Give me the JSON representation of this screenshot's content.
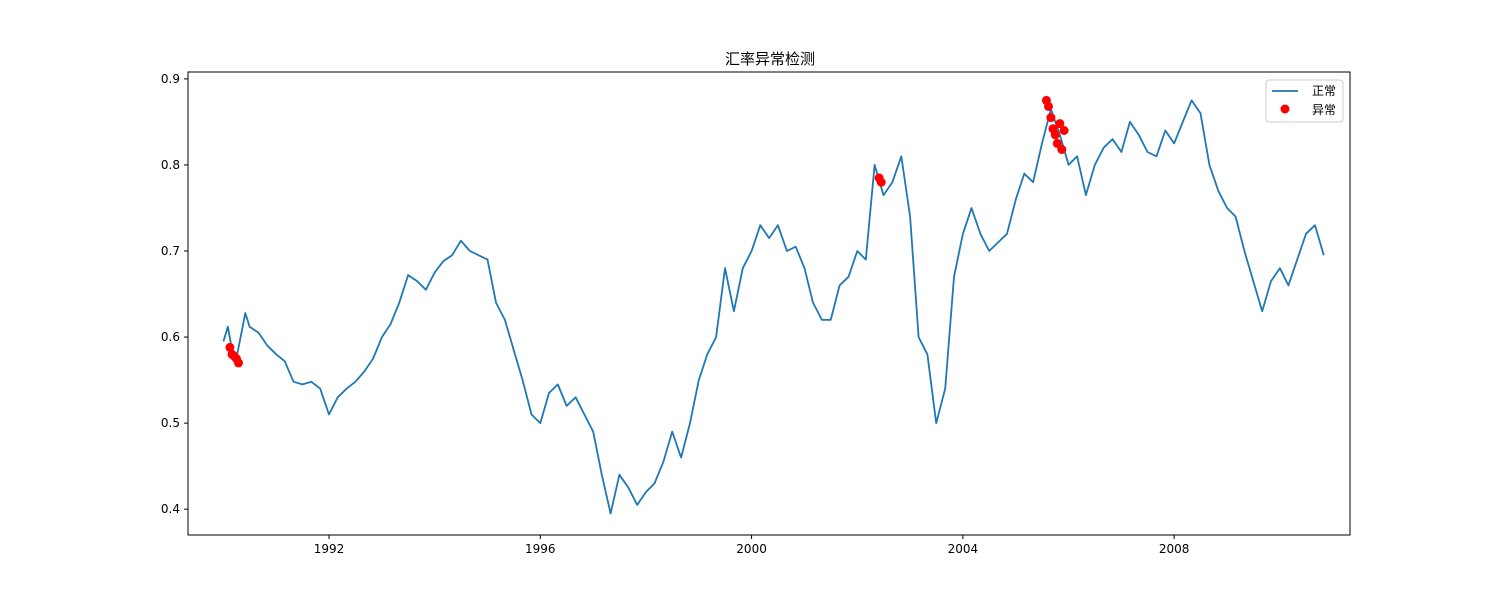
{
  "chart_data": {
    "type": "line",
    "title": "汇率异常检测",
    "xlabel": "",
    "ylabel": "",
    "x_axis": {
      "type": "date",
      "range": [
        "1989-05-01",
        "2011-05-01"
      ],
      "ticks": [
        "1992-01-01",
        "1996-01-01",
        "2000-01-01",
        "2004-01-01",
        "2008-01-01"
      ],
      "tick_labels": [
        "1992",
        "1996",
        "2000",
        "2004",
        "2008"
      ]
    },
    "y_axis": {
      "range": [
        0.37,
        0.908
      ],
      "ticks": [
        0.4,
        0.5,
        0.6,
        0.7,
        0.8,
        0.9
      ],
      "tick_labels": [
        "0.4",
        "0.5",
        "0.6",
        "0.7",
        "0.8",
        "0.9"
      ]
    },
    "grid": false,
    "legend_position": "top-right",
    "colors": {
      "normal": "#1f77b4",
      "anomaly": "#ff0000"
    },
    "series": [
      {
        "name": "正常",
        "type": "line",
        "x": [
          "1990-01-01",
          "1990-02-01",
          "1990-03-01",
          "1990-04-01",
          "1990-06-01",
          "1990-07-01",
          "1990-09-01",
          "1990-11-01",
          "1991-01-01",
          "1991-03-01",
          "1991-05-01",
          "1991-07-01",
          "1991-09-01",
          "1991-11-01",
          "1992-01-01",
          "1992-03-01",
          "1992-05-01",
          "1992-07-01",
          "1992-09-01",
          "1992-11-01",
          "1993-01-01",
          "1993-03-01",
          "1993-05-01",
          "1993-07-01",
          "1993-09-01",
          "1993-11-01",
          "1994-01-01",
          "1994-03-01",
          "1994-05-01",
          "1994-07-01",
          "1994-09-01",
          "1994-11-01",
          "1995-01-01",
          "1995-03-01",
          "1995-05-01",
          "1995-07-01",
          "1995-09-01",
          "1995-11-01",
          "1996-01-01",
          "1996-03-01",
          "1996-05-01",
          "1996-07-01",
          "1996-09-01",
          "1996-11-01",
          "1997-01-01",
          "1997-03-01",
          "1997-05-01",
          "1997-07-01",
          "1997-09-01",
          "1997-11-01",
          "1998-01-01",
          "1998-03-01",
          "1998-05-01",
          "1998-07-01",
          "1998-09-01",
          "1998-11-01",
          "1999-01-01",
          "1999-03-01",
          "1999-05-01",
          "1999-07-01",
          "1999-09-01",
          "1999-11-01",
          "2000-01-01",
          "2000-03-01",
          "2000-05-01",
          "2000-07-01",
          "2000-09-01",
          "2000-11-01",
          "2001-01-01",
          "2001-03-01",
          "2001-05-01",
          "2001-07-01",
          "2001-09-01",
          "2001-11-01",
          "2002-01-01",
          "2002-03-01",
          "2002-05-01",
          "2002-07-01",
          "2002-09-01",
          "2002-11-01",
          "2003-01-01",
          "2003-03-01",
          "2003-05-01",
          "2003-07-01",
          "2003-09-01",
          "2003-11-01",
          "2004-01-01",
          "2004-03-01",
          "2004-05-01",
          "2004-07-01",
          "2004-09-01",
          "2004-11-01",
          "2005-01-01",
          "2005-03-01",
          "2005-05-01",
          "2005-07-01",
          "2005-09-01",
          "2005-11-01",
          "2006-01-01",
          "2006-03-01",
          "2006-05-01",
          "2006-07-01",
          "2006-09-01",
          "2006-11-01",
          "2007-01-01",
          "2007-03-01",
          "2007-05-01",
          "2007-07-01",
          "2007-09-01",
          "2007-11-01",
          "2008-01-01",
          "2008-03-01",
          "2008-05-01",
          "2008-07-01",
          "2008-09-01",
          "2008-11-01",
          "2009-01-01",
          "2009-03-01",
          "2009-05-01",
          "2009-07-01",
          "2009-09-01",
          "2009-11-01",
          "2010-01-01",
          "2010-03-01",
          "2010-05-01",
          "2010-07-01",
          "2010-09-01",
          "2010-11-01"
        ],
        "y": [
          0.595,
          0.612,
          0.585,
          0.575,
          0.628,
          0.612,
          0.605,
          0.59,
          0.58,
          0.572,
          0.548,
          0.545,
          0.548,
          0.54,
          0.51,
          0.53,
          0.54,
          0.548,
          0.56,
          0.575,
          0.6,
          0.615,
          0.64,
          0.672,
          0.665,
          0.655,
          0.675,
          0.688,
          0.695,
          0.712,
          0.7,
          0.695,
          0.69,
          0.64,
          0.62,
          0.585,
          0.55,
          0.51,
          0.5,
          0.535,
          0.545,
          0.52,
          0.53,
          0.51,
          0.49,
          0.44,
          0.395,
          0.44,
          0.425,
          0.405,
          0.42,
          0.43,
          0.455,
          0.49,
          0.46,
          0.5,
          0.55,
          0.58,
          0.6,
          0.68,
          0.63,
          0.68,
          0.7,
          0.73,
          0.715,
          0.73,
          0.7,
          0.705,
          0.68,
          0.64,
          0.62,
          0.62,
          0.66,
          0.67,
          0.7,
          0.69,
          0.8,
          0.765,
          0.78,
          0.81,
          0.74,
          0.6,
          0.58,
          0.5,
          0.54,
          0.67,
          0.72,
          0.75,
          0.72,
          0.7,
          0.71,
          0.72,
          0.76,
          0.79,
          0.78,
          0.825,
          0.865,
          0.835,
          0.8,
          0.81,
          0.765,
          0.8,
          0.82,
          0.83,
          0.815,
          0.85,
          0.835,
          0.815,
          0.81,
          0.84,
          0.825,
          0.85,
          0.875,
          0.86,
          0.8,
          0.77,
          0.75,
          0.74,
          0.7,
          0.665,
          0.63,
          0.665,
          0.68,
          0.66,
          0.69,
          0.72,
          0.73,
          0.695
        ]
      },
      {
        "name": "异常",
        "type": "scatter",
        "x": [
          "1990-02-15",
          "1990-03-01",
          "1990-03-15",
          "1990-04-01",
          "1990-04-15",
          "2002-06-01",
          "2002-06-15",
          "2005-08-01",
          "2005-08-15",
          "2005-09-01",
          "2005-09-15",
          "2005-10-01",
          "2005-10-15",
          "2005-11-01",
          "2005-11-15",
          "2005-12-01"
        ],
        "y": [
          0.588,
          0.58,
          0.578,
          0.575,
          0.57,
          0.785,
          0.78,
          0.875,
          0.868,
          0.855,
          0.842,
          0.835,
          0.825,
          0.848,
          0.818,
          0.84
        ]
      }
    ]
  }
}
